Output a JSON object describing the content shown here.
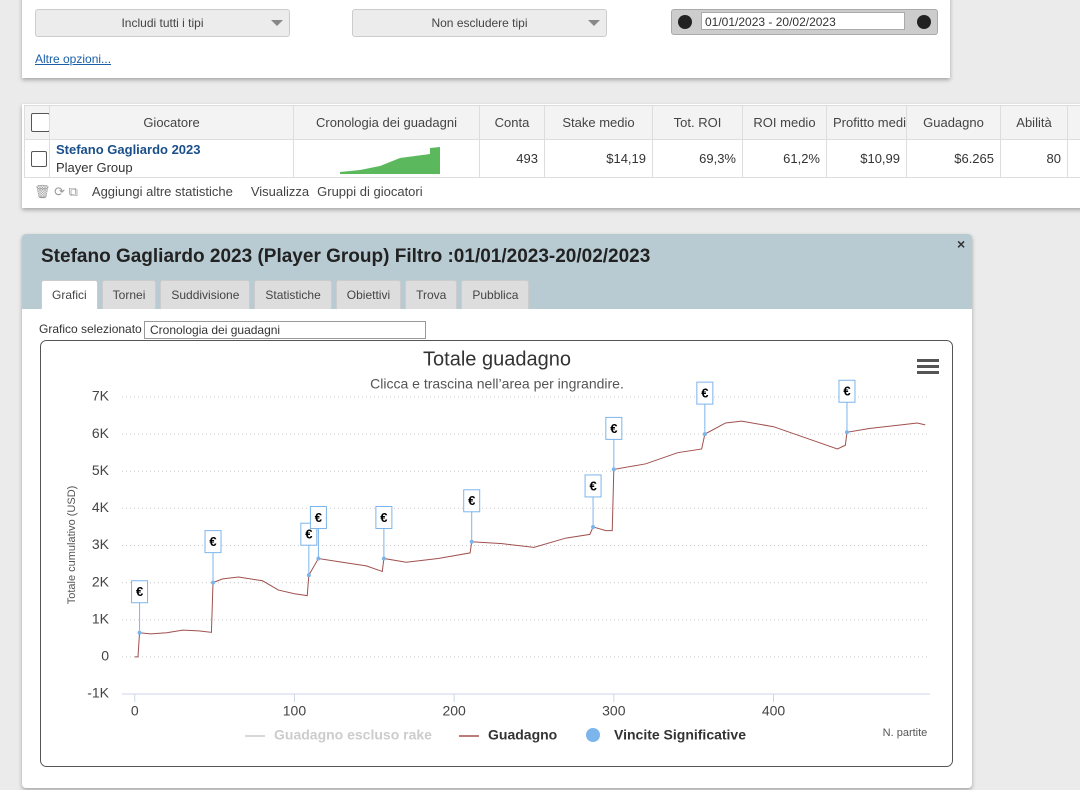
{
  "filters": {
    "include": "Includi tutti i tipi",
    "exclude": "Non escludere tipi",
    "date_range": "01/01/2023 - 20/02/2023",
    "more_options": "Altre opzioni..."
  },
  "table": {
    "headers": [
      "Giocatore",
      "Cronologia dei guadagni",
      "Conta",
      "Stake medio",
      "Tot. ROI",
      "ROI medio",
      "Profitto medio",
      "Guadagno",
      "Abilità"
    ],
    "rows": [
      {
        "name": "Stefano Gagliardo 2023",
        "group": "Player Group",
        "cells": [
          "493",
          "$14,19",
          "69,3%",
          "61,2%",
          "$10,99",
          "$6.265",
          "80"
        ]
      }
    ]
  },
  "toolbar": {
    "add_stats": "Aggiungi altre statistiche",
    "view": "Visualizza",
    "groups": "Gruppi di giocatori"
  },
  "panel": {
    "title": "Stefano Gagliardo 2023 (Player Group) Filtro :01/01/2023-20/02/2023",
    "tabs": [
      "Grafici",
      "Tornei",
      "Suddivisione",
      "Statistiche",
      "Obiettivi",
      "Trova",
      "Pubblica"
    ],
    "select_label": "Grafico selezionato",
    "select_value": "Cronologia dei guadagni"
  },
  "chart_data": {
    "type": "line",
    "title": "Totale guadagno",
    "subtitle": "Clicca e trascina nell’area per ingrandire.",
    "y_label": "Totale cumulativo (USD)",
    "x_label": "N. partite",
    "xlim": [
      -8,
      498
    ],
    "ylim": [
      -1000,
      7000
    ],
    "xticks": [
      0,
      100,
      200,
      300,
      400
    ],
    "yticks": [
      {
        "value": -1000,
        "label": "-1K"
      },
      0,
      {
        "value": 1000,
        "label": "1K"
      },
      {
        "value": 2000,
        "label": "2K"
      },
      {
        "value": 3000,
        "label": "3K"
      },
      {
        "value": 4000,
        "label": "4K"
      },
      {
        "value": 5000,
        "label": "5K"
      },
      {
        "value": 6000,
        "label": "6K"
      },
      {
        "value": 7000,
        "label": "7K"
      }
    ],
    "grid": true,
    "series": [
      {
        "name": "Guadagno escluso rake",
        "color": "#c8c8c8",
        "visible": false,
        "x": [],
        "values": []
      },
      {
        "name": "Guadagno",
        "color": "#a0504e",
        "visible": true,
        "x": [
          0,
          2,
          3,
          10,
          20,
          30,
          40,
          48,
          49,
          55,
          65,
          80,
          90,
          100,
          108,
          109,
          113,
          115,
          130,
          145,
          155,
          156,
          170,
          190,
          210,
          211,
          230,
          250,
          270,
          285,
          287,
          295,
          299,
          300,
          320,
          340,
          355,
          357,
          370,
          380,
          400,
          420,
          440,
          445,
          446,
          460,
          480,
          490,
          495
        ],
        "values": [
          0,
          0,
          650,
          620,
          650,
          720,
          700,
          660,
          2000,
          2100,
          2150,
          2050,
          1800,
          1700,
          1650,
          2200,
          2500,
          2650,
          2550,
          2450,
          2300,
          2650,
          2550,
          2650,
          2800,
          3100,
          3050,
          2950,
          3200,
          3300,
          3500,
          3400,
          3400,
          5050,
          5200,
          5500,
          5600,
          6000,
          6300,
          6350,
          6200,
          5900,
          5600,
          5700,
          6050,
          6150,
          6250,
          6300,
          6250
        ]
      },
      {
        "name": "Vincite Significative",
        "color": "#7cb5ec",
        "visible": true,
        "marker_label": "€",
        "x": [
          3,
          49,
          109,
          115,
          156,
          211,
          287,
          300,
          357,
          446
        ],
        "values": [
          650,
          2000,
          2200,
          2650,
          2650,
          3100,
          3500,
          5050,
          6000,
          6050
        ]
      }
    ]
  }
}
